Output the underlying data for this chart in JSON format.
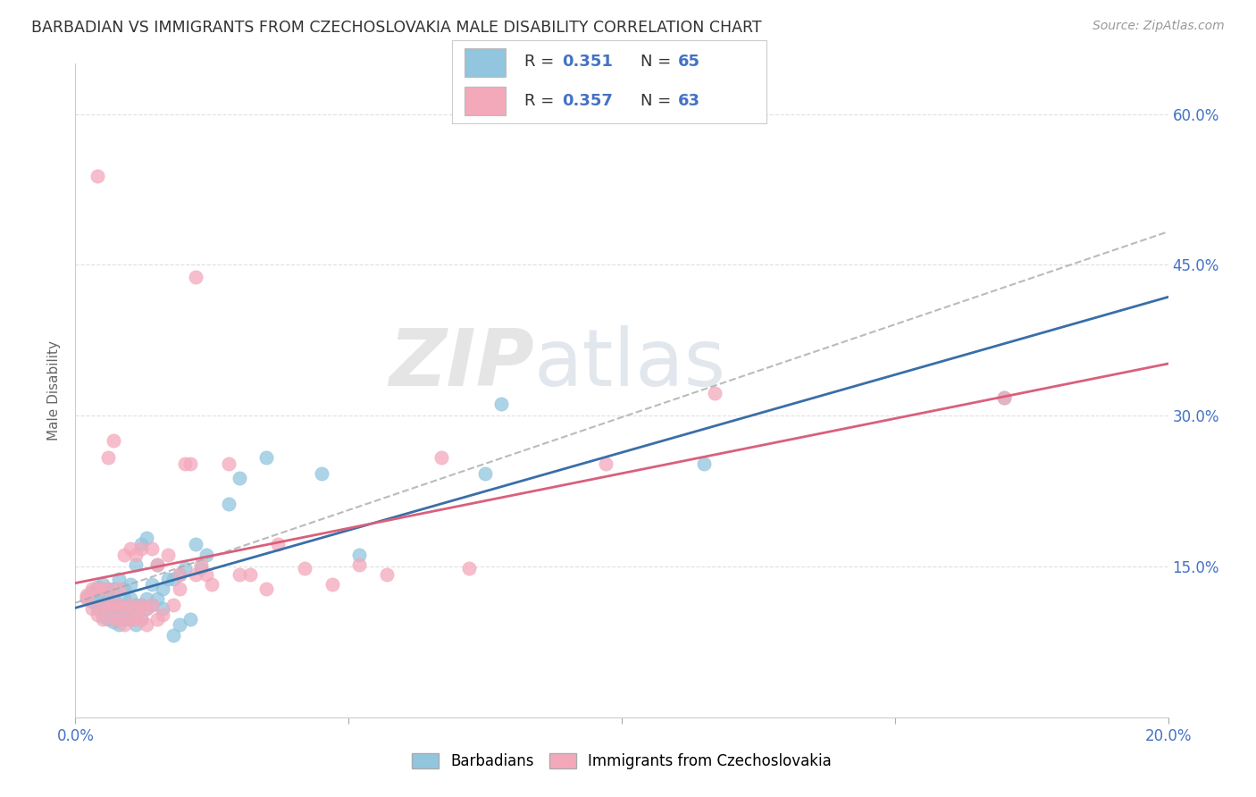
{
  "title": "BARBADIAN VS IMMIGRANTS FROM CZECHOSLOVAKIA MALE DISABILITY CORRELATION CHART",
  "source": "Source: ZipAtlas.com",
  "ylabel": "Male Disability",
  "xlim": [
    0.0,
    0.2
  ],
  "ylim": [
    0.0,
    0.65
  ],
  "ytick_labels_right": [
    "15.0%",
    "30.0%",
    "45.0%",
    "60.0%"
  ],
  "ytick_positions_right": [
    0.15,
    0.3,
    0.45,
    0.6
  ],
  "blue_color": "#92c5de",
  "pink_color": "#f4a9bb",
  "blue_line_color": "#3a6ea8",
  "pink_line_color": "#d9607a",
  "gray_dash_color": "#aaaaaa",
  "blue_label": "Barbadians",
  "pink_label": "Immigrants from Czechoslovakia",
  "legend_R_blue": "R = 0.351",
  "legend_N_blue": "N = 65",
  "legend_R_pink": "R = 0.357",
  "legend_N_pink": "N = 63",
  "blue_scatter_x": [
    0.002,
    0.003,
    0.003,
    0.004,
    0.004,
    0.004,
    0.005,
    0.005,
    0.005,
    0.005,
    0.006,
    0.006,
    0.006,
    0.006,
    0.007,
    0.007,
    0.007,
    0.007,
    0.008,
    0.008,
    0.008,
    0.008,
    0.009,
    0.009,
    0.009,
    0.009,
    0.01,
    0.01,
    0.01,
    0.01,
    0.011,
    0.011,
    0.011,
    0.011,
    0.012,
    0.012,
    0.012,
    0.013,
    0.013,
    0.013,
    0.014,
    0.014,
    0.015,
    0.015,
    0.016,
    0.016,
    0.017,
    0.018,
    0.018,
    0.019,
    0.019,
    0.02,
    0.021,
    0.022,
    0.023,
    0.024,
    0.028,
    0.03,
    0.035,
    0.045,
    0.052,
    0.075,
    0.078,
    0.115,
    0.17
  ],
  "blue_scatter_y": [
    0.12,
    0.115,
    0.125,
    0.108,
    0.12,
    0.13,
    0.1,
    0.112,
    0.122,
    0.132,
    0.098,
    0.108,
    0.118,
    0.128,
    0.095,
    0.108,
    0.118,
    0.128,
    0.092,
    0.102,
    0.112,
    0.138,
    0.098,
    0.108,
    0.118,
    0.128,
    0.098,
    0.108,
    0.118,
    0.132,
    0.092,
    0.102,
    0.112,
    0.152,
    0.098,
    0.112,
    0.172,
    0.108,
    0.118,
    0.178,
    0.112,
    0.132,
    0.118,
    0.152,
    0.108,
    0.128,
    0.138,
    0.082,
    0.138,
    0.092,
    0.142,
    0.148,
    0.098,
    0.172,
    0.148,
    0.162,
    0.212,
    0.238,
    0.258,
    0.242,
    0.162,
    0.242,
    0.312,
    0.252,
    0.318
  ],
  "pink_scatter_x": [
    0.002,
    0.002,
    0.003,
    0.003,
    0.004,
    0.004,
    0.005,
    0.005,
    0.005,
    0.006,
    0.006,
    0.006,
    0.007,
    0.007,
    0.007,
    0.008,
    0.008,
    0.008,
    0.009,
    0.009,
    0.009,
    0.01,
    0.01,
    0.01,
    0.011,
    0.011,
    0.011,
    0.012,
    0.012,
    0.012,
    0.013,
    0.013,
    0.014,
    0.014,
    0.015,
    0.015,
    0.016,
    0.017,
    0.018,
    0.019,
    0.019,
    0.02,
    0.021,
    0.022,
    0.023,
    0.024,
    0.025,
    0.028,
    0.03,
    0.032,
    0.035,
    0.037,
    0.042,
    0.047,
    0.052,
    0.057,
    0.067,
    0.072,
    0.097,
    0.117,
    0.004,
    0.022,
    0.17
  ],
  "pink_scatter_y": [
    0.122,
    0.118,
    0.108,
    0.128,
    0.102,
    0.128,
    0.098,
    0.112,
    0.128,
    0.108,
    0.128,
    0.258,
    0.098,
    0.112,
    0.275,
    0.098,
    0.112,
    0.128,
    0.092,
    0.108,
    0.162,
    0.098,
    0.112,
    0.168,
    0.098,
    0.108,
    0.162,
    0.098,
    0.112,
    0.168,
    0.092,
    0.108,
    0.112,
    0.168,
    0.098,
    0.152,
    0.102,
    0.162,
    0.112,
    0.142,
    0.128,
    0.252,
    0.252,
    0.142,
    0.152,
    0.142,
    0.132,
    0.252,
    0.142,
    0.142,
    0.128,
    0.172,
    0.148,
    0.132,
    0.152,
    0.142,
    0.258,
    0.148,
    0.252,
    0.322,
    0.538,
    0.438,
    0.318
  ],
  "watermark_zip": "ZIP",
  "watermark_atlas": "atlas",
  "background_color": "#ffffff",
  "grid_color": "#dddddd",
  "tick_color": "#4472c4",
  "legend_text_color": "#4472c4",
  "legend_rn_color": "#333333"
}
